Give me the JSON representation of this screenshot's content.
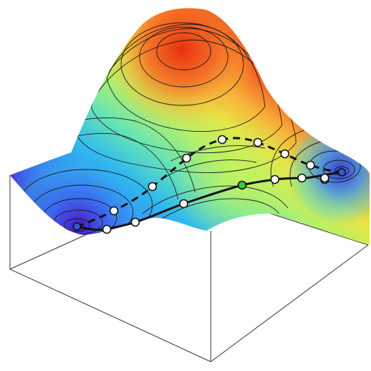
{
  "figure": {
    "surface_colormap": [
      "#4b1fd0",
      "#3f6ff2",
      "#2fb8f0",
      "#59e0c0",
      "#9cf07a",
      "#d8ee4a",
      "#f7c13a",
      "#f47a28",
      "#e83a16"
    ],
    "contour_color": "#1a1a1a",
    "box_color": "#333333",
    "minimum_left_color": "#2f5bd8",
    "minimum_right_color": "#2f5bd8",
    "saddle_color": "#3cc83c",
    "path_dashed": {
      "style": "dashed",
      "color": "#111111",
      "node_count": 9
    },
    "path_solid": {
      "style": "solid",
      "color": "#111111",
      "node_count": 7
    },
    "node_fill": "#ffffff",
    "node_stroke": "#111111"
  }
}
